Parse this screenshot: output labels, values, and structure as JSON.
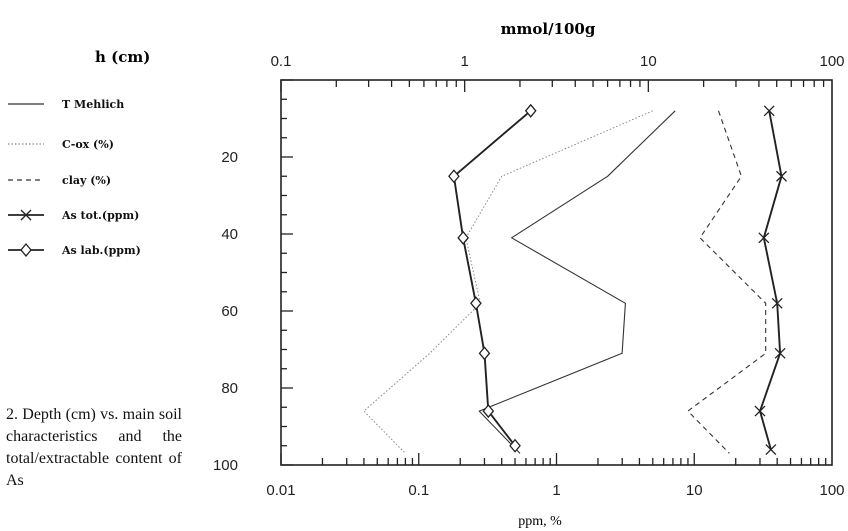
{
  "chart_data": {
    "type": "line",
    "title_top": "mmol/100g",
    "ylabel": "h (cm)",
    "xlabel_bottom": "ppm, %",
    "bottom_axis": {
      "scale": "log",
      "range": [
        0.01,
        100
      ],
      "ticks": [
        "0.01",
        "0.1",
        "1",
        "10",
        "100"
      ]
    },
    "top_axis": {
      "scale": "log",
      "range": [
        0.1,
        100
      ],
      "ticks": [
        "0.1",
        "1",
        "10",
        "100"
      ]
    },
    "y_axis": {
      "range": [
        0,
        100
      ],
      "inverted": true,
      "ticks": [
        "20",
        "40",
        "60",
        "80",
        "100"
      ]
    },
    "series": [
      {
        "name": "T Mehlich",
        "axis": "top",
        "style": "solid",
        "points": [
          [
            14,
            8
          ],
          [
            6,
            25
          ],
          [
            1.8,
            41
          ],
          [
            7.5,
            58
          ],
          [
            7.2,
            71
          ],
          [
            1.2,
            86
          ],
          [
            2,
            97
          ]
        ]
      },
      {
        "name": "C-ox (%)",
        "axis": "bottom",
        "style": "dotted",
        "points": [
          [
            5,
            8
          ],
          [
            0.4,
            25
          ],
          [
            0.22,
            41
          ],
          [
            0.28,
            58
          ],
          [
            0.12,
            71
          ],
          [
            0.04,
            86
          ],
          [
            0.08,
            97
          ]
        ]
      },
      {
        "name": "clay (%)",
        "axis": "bottom",
        "style": "dashed",
        "points": [
          [
            15,
            8
          ],
          [
            22,
            25
          ],
          [
            11,
            41
          ],
          [
            33,
            58
          ],
          [
            33,
            71
          ],
          [
            9,
            86
          ],
          [
            18,
            97
          ]
        ]
      },
      {
        "name": "As tot.(ppm)",
        "axis": "bottom",
        "style": "solid",
        "marker": "x",
        "points": [
          [
            35,
            8
          ],
          [
            43,
            25
          ],
          [
            32,
            41
          ],
          [
            40,
            58
          ],
          [
            42,
            71
          ],
          [
            30,
            86
          ],
          [
            36,
            96
          ]
        ]
      },
      {
        "name": "As lab.(ppm)",
        "axis": "bottom",
        "style": "solid",
        "marker": "diamond",
        "points": [
          [
            0.65,
            8
          ],
          [
            0.18,
            25
          ],
          [
            0.21,
            41
          ],
          [
            0.26,
            58
          ],
          [
            0.3,
            71
          ],
          [
            0.32,
            86
          ],
          [
            0.5,
            95
          ]
        ]
      }
    ]
  },
  "caption": "2. Depth (cm) vs. main soil characteristics and the total/extractable content of As"
}
